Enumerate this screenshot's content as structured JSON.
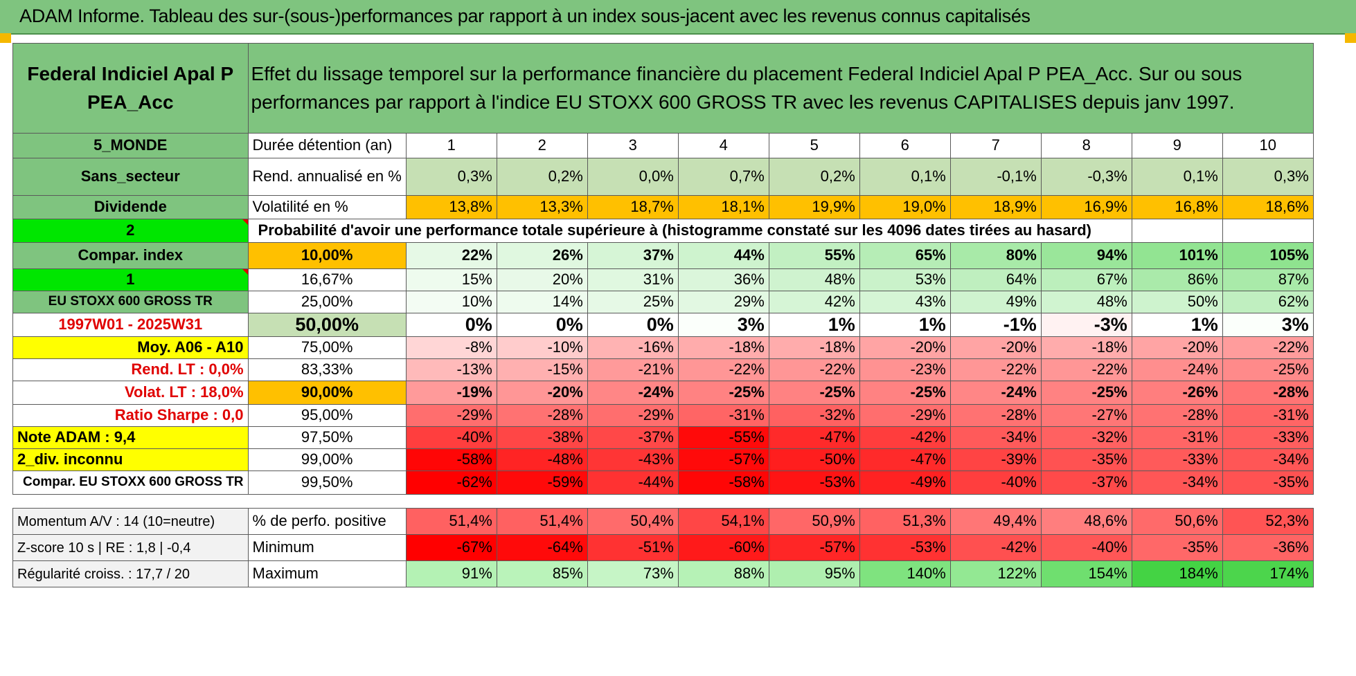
{
  "title": "ADAM Informe. Tableau des sur-(sous-)performances par rapport à un index sous-jacent avec les revenus connus capitalisés",
  "header": {
    "fund_name": "Federal Indiciel Apal P PEA_Acc",
    "description": "Effet du lissage temporel sur la performance financière du placement Federal Indiciel Apal P PEA_Acc. Sur ou sous performances par rapport à l'indice EU STOXX 600 GROSS TR avec les revenus CAPITALISES depuis janv 1997."
  },
  "left_labels": {
    "zone": "5_MONDE",
    "sector": "Sans_secteur",
    "dividend": "Dividende",
    "num2": "2",
    "compar_index": "Compar. index",
    "num1": "1",
    "index_name": "EU STOXX 600 GROSS TR",
    "period": "1997W01 - 2025W31",
    "moy": "Moy. A06 - A10",
    "rend_lt": "Rend. LT :    0,0%",
    "volat_lt": "Volat. LT :    18,0%",
    "sharpe": "Ratio Sharpe :     0,0",
    "note_adam": "Note ADAM : 9,4",
    "div_inconnu": "2_div. inconnu",
    "compar_name": "Compar. EU STOXX 600 GROSS TR",
    "momentum": "Momentum A/V : 14 (10=neutre)",
    "zscore": "Z-score 10 s | RE : 1,8 | -0,4",
    "regularite": "Régularité croiss. : 17,7 / 20"
  },
  "row_labels": {
    "duree": "Durée détention (an)",
    "rend": "Rend. annualisé en %",
    "vol": "Volatilité en %",
    "proba": "Probabilité d'avoir une performance totale supérieure à (histogramme constaté sur les 4096 dates tirées au hasard)",
    "pos": "% de perfo. positive",
    "min": "Minimum",
    "max": "Maximum"
  },
  "years": [
    "1",
    "2",
    "3",
    "4",
    "5",
    "6",
    "7",
    "8",
    "9",
    "10"
  ],
  "rend": [
    "0,3%",
    "0,2%",
    "0,0%",
    "0,7%",
    "0,2%",
    "0,1%",
    "-0,1%",
    "-0,3%",
    "0,1%",
    "0,3%"
  ],
  "vol": [
    "13,8%",
    "13,3%",
    "18,7%",
    "18,1%",
    "19,9%",
    "19,0%",
    "18,9%",
    "16,9%",
    "16,8%",
    "18,6%"
  ],
  "percentiles": [
    {
      "p": "10,00%",
      "v": [
        "22%",
        "26%",
        "37%",
        "44%",
        "55%",
        "65%",
        "80%",
        "94%",
        "101%",
        "105%"
      ]
    },
    {
      "p": "16,67%",
      "v": [
        "15%",
        "20%",
        "31%",
        "36%",
        "48%",
        "53%",
        "64%",
        "67%",
        "86%",
        "87%"
      ]
    },
    {
      "p": "25,00%",
      "v": [
        "10%",
        "14%",
        "25%",
        "29%",
        "42%",
        "43%",
        "49%",
        "48%",
        "50%",
        "62%"
      ]
    },
    {
      "p": "50,00%",
      "v": [
        "0%",
        "0%",
        "0%",
        "3%",
        "1%",
        "1%",
        "-1%",
        "-3%",
        "1%",
        "3%"
      ]
    },
    {
      "p": "75,00%",
      "v": [
        "-8%",
        "-10%",
        "-16%",
        "-18%",
        "-18%",
        "-20%",
        "-20%",
        "-18%",
        "-20%",
        "-22%"
      ]
    },
    {
      "p": "83,33%",
      "v": [
        "-13%",
        "-15%",
        "-21%",
        "-22%",
        "-22%",
        "-23%",
        "-22%",
        "-22%",
        "-24%",
        "-25%"
      ]
    },
    {
      "p": "90,00%",
      "v": [
        "-19%",
        "-20%",
        "-24%",
        "-25%",
        "-25%",
        "-25%",
        "-24%",
        "-25%",
        "-26%",
        "-28%"
      ]
    },
    {
      "p": "95,00%",
      "v": [
        "-29%",
        "-28%",
        "-29%",
        "-31%",
        "-32%",
        "-29%",
        "-28%",
        "-27%",
        "-28%",
        "-31%"
      ]
    },
    {
      "p": "97,50%",
      "v": [
        "-40%",
        "-38%",
        "-37%",
        "-55%",
        "-47%",
        "-42%",
        "-34%",
        "-32%",
        "-31%",
        "-33%"
      ]
    },
    {
      "p": "99,00%",
      "v": [
        "-58%",
        "-48%",
        "-43%",
        "-57%",
        "-50%",
        "-47%",
        "-39%",
        "-35%",
        "-33%",
        "-34%"
      ]
    },
    {
      "p": "99,50%",
      "v": [
        "-62%",
        "-59%",
        "-44%",
        "-58%",
        "-53%",
        "-49%",
        "-40%",
        "-37%",
        "-34%",
        "-35%"
      ]
    }
  ],
  "pos": [
    "51,4%",
    "51,4%",
    "50,4%",
    "54,1%",
    "50,9%",
    "51,3%",
    "49,4%",
    "48,6%",
    "50,6%",
    "52,3%"
  ],
  "min": [
    "-67%",
    "-64%",
    "-51%",
    "-60%",
    "-57%",
    "-53%",
    "-42%",
    "-40%",
    "-35%",
    "-36%"
  ],
  "max": [
    "91%",
    "85%",
    "73%",
    "88%",
    "95%",
    "140%",
    "122%",
    "154%",
    "184%",
    "174%"
  ],
  "colors": {
    "header_green": "#7fc47f",
    "light_green": "#c6e0b4",
    "bright_green": "#00e600",
    "yellow": "#ffff00",
    "orange": "#ffc000",
    "red": "#ff0000"
  }
}
